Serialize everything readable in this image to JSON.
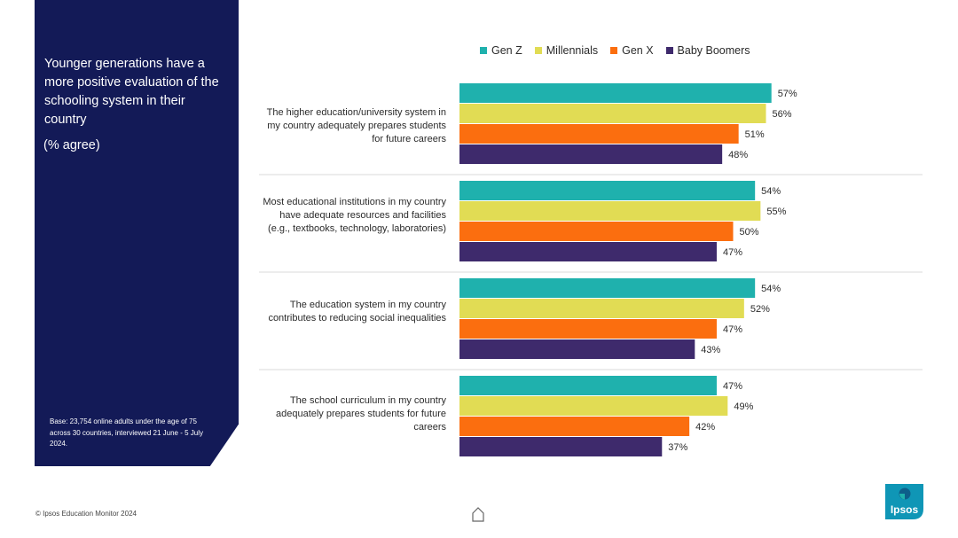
{
  "panel": {
    "title": "Younger generations have a more positive evaluation of the schooling system in their country",
    "subtitle": "(% agree)",
    "base": "Base: 23,754 online adults under the age of 75 across 30 countries, interviewed 21 June - 5 July 2024."
  },
  "footer": {
    "copyright": "© Ipsos Education Monitor 2024"
  },
  "logo": {
    "text": "Ipsos"
  },
  "colors": {
    "panel_bg": "#131a57",
    "gen_z": "#1fb1ad",
    "millennials": "#e1dc54",
    "gen_x": "#fb6e0f",
    "baby_boomers": "#3e2a6c"
  },
  "chart_data": {
    "type": "bar",
    "orientation": "horizontal",
    "title": "Younger generations have a more positive evaluation of the schooling system in their country",
    "subtitle": "(% agree)",
    "xlabel": "",
    "ylabel": "",
    "xlim": [
      0,
      60
    ],
    "legend_position": "top",
    "value_suffix": "%",
    "categories": [
      "The higher education/university system in my country adequately prepares students for future careers",
      "Most educational institutions in my country have adequate resources and facilities (e.g., textbooks, technology, laboratories)",
      "The education system in my country contributes to reducing social inequalities",
      "The school curriculum in my country adequately prepares students for future careers"
    ],
    "series": [
      {
        "name": "Gen Z",
        "color": "#1fb1ad",
        "values": [
          57,
          54,
          54,
          47
        ]
      },
      {
        "name": "Millennials",
        "color": "#e1dc54",
        "values": [
          56,
          55,
          52,
          49
        ]
      },
      {
        "name": "Gen X",
        "color": "#fb6e0f",
        "values": [
          51,
          50,
          47,
          42
        ]
      },
      {
        "name": "Baby Boomers",
        "color": "#3e2a6c",
        "values": [
          48,
          47,
          43,
          37
        ]
      }
    ]
  }
}
